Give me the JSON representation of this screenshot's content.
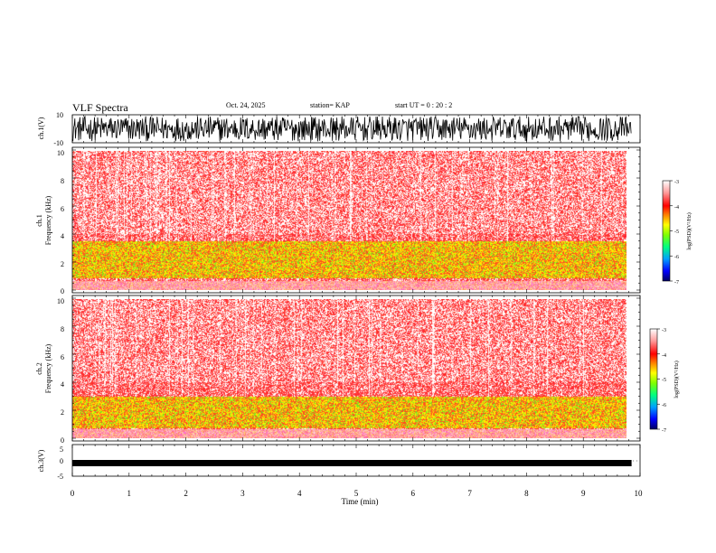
{
  "header": {
    "title": "VLF Spectra",
    "date": "Oct. 24, 2025",
    "station": "station= KAP",
    "start": "start  UT =   0 : 20 : 2"
  },
  "colors": {
    "spectrogram_background": "#ff2a2a",
    "white_noise": "#ffffff",
    "band_yellow": "#ffd400",
    "band_green": "#55ee22",
    "colormap": [
      "#000080",
      "#0000ff",
      "#00c8ff",
      "#00ff40",
      "#bfff00",
      "#ffff00",
      "#ff8000",
      "#ff0000",
      "#ff9090",
      "#ffffff"
    ]
  },
  "chart_data": [
    {
      "type": "line",
      "name": "ch.1 waveform",
      "ylabel": "ch.1(V)",
      "ylim": [
        -10,
        10
      ],
      "yticks": [
        "10",
        "-10"
      ],
      "xlim": [
        0,
        9.85
      ],
      "description_values": "dense noise signal filling most of the range"
    },
    {
      "type": "heatmap",
      "name": "ch.1 spectrogram",
      "ylabel": "ch.1",
      "ylabel2": "Frequency  (kHz)",
      "ylim": [
        0,
        10
      ],
      "yticks": [
        "0",
        "2",
        "4",
        "6",
        "8",
        "10"
      ],
      "xlim": [
        0,
        9.85
      ],
      "bands_khz": [
        [
          0.8,
          3.5
        ]
      ],
      "colorbar": {
        "label": "log(PSD)(V²/Hz)",
        "range": [
          -7,
          -3
        ],
        "ticks": [
          "-3",
          "-4",
          "-5",
          "-6",
          "-7"
        ]
      }
    },
    {
      "type": "heatmap",
      "name": "ch.2 spectrogram",
      "ylabel": "ch.2",
      "ylabel2": "Frequency  (kHz)",
      "ylim": [
        0,
        10
      ],
      "yticks": [
        "0",
        "2",
        "4",
        "6",
        "8",
        "10"
      ],
      "xlim": [
        0,
        9.85
      ],
      "bands_khz": [
        [
          0.7,
          3.0
        ]
      ],
      "colorbar": {
        "label": "log(PSD)(V²/Hz)",
        "range": [
          -7,
          -3
        ],
        "ticks": [
          "-3",
          "-4",
          "-5",
          "-6",
          "-7"
        ]
      }
    },
    {
      "type": "line",
      "name": "ch.3 waveform",
      "ylabel": "ch.3(V)",
      "ylim": [
        -5,
        5
      ],
      "yticks": [
        "5",
        "0",
        "-5"
      ],
      "xlim": [
        0,
        9.85
      ],
      "center_value": -0.9
    }
  ],
  "xaxis": {
    "label": "Time  (min)",
    "range": [
      0,
      10
    ],
    "ticks": [
      "0",
      "1",
      "2",
      "3",
      "4",
      "5",
      "6",
      "7",
      "8",
      "9",
      "10"
    ]
  }
}
